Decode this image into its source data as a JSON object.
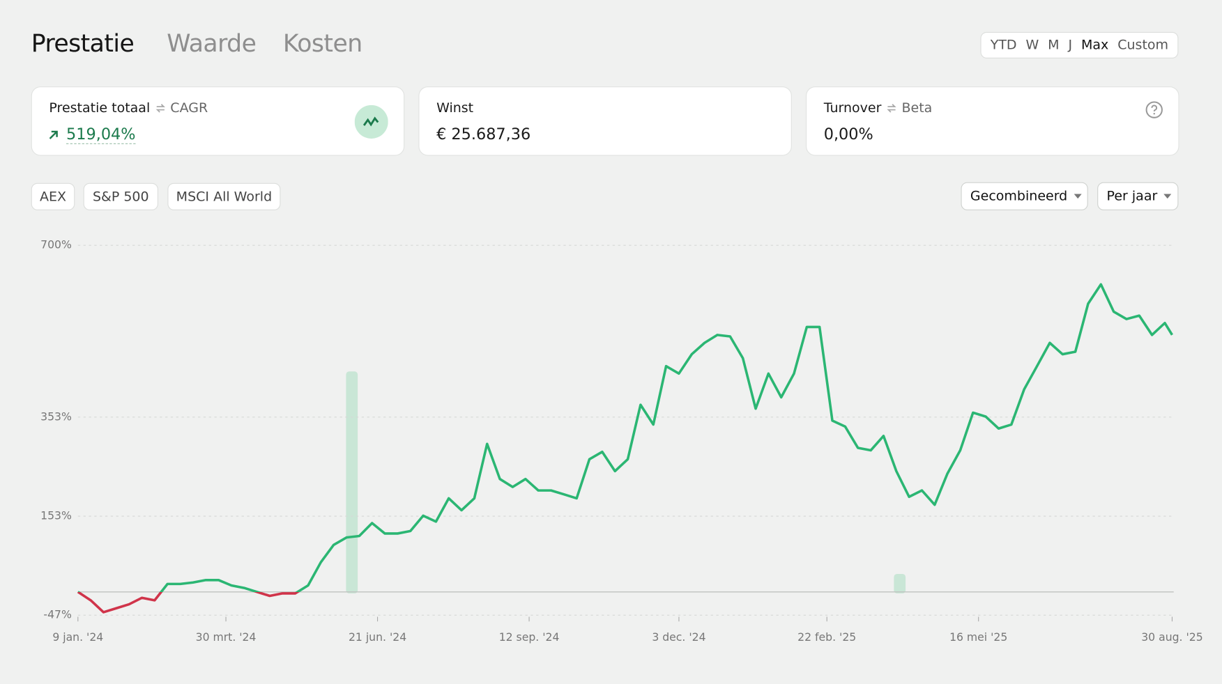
{
  "tabs": [
    {
      "label": "Prestatie",
      "active": true
    },
    {
      "label": "Waarde",
      "active": false
    },
    {
      "label": "Kosten",
      "active": false
    }
  ],
  "ranges": [
    {
      "label": "YTD",
      "active": false
    },
    {
      "label": "W",
      "active": false
    },
    {
      "label": "M",
      "active": false
    },
    {
      "label": "J",
      "active": false
    },
    {
      "label": "Max",
      "active": true
    },
    {
      "label": "Custom",
      "active": false
    }
  ],
  "cards": [
    {
      "label": "Prestatie totaal",
      "alt_label": "CAGR",
      "value": "519,04%"
    },
    {
      "label": "Winst",
      "value": "€ 25.687,36"
    },
    {
      "label": "Turnover",
      "alt_label": "Beta",
      "value": "0,00%"
    }
  ],
  "benchmarks": [
    "AEX",
    "S&P 500",
    "MSCI All World"
  ],
  "dropdowns": [
    "Gecombineerd",
    "Per jaar"
  ],
  "chart_data": {
    "type": "line",
    "color": "#2bb673",
    "negative_color": "#d0344a",
    "grid": true,
    "x": [
      "2024-01-09",
      "2024-01-16",
      "2024-01-23",
      "2024-01-30",
      "2024-02-06",
      "2024-02-13",
      "2024-02-20",
      "2024-02-27",
      "2024-03-05",
      "2024-03-12",
      "2024-03-19",
      "2024-03-26",
      "2024-04-02",
      "2024-04-09",
      "2024-04-16",
      "2024-04-23",
      "2024-04-30",
      "2024-05-07",
      "2024-05-14",
      "2024-05-21",
      "2024-05-28",
      "2024-06-04",
      "2024-06-11",
      "2024-06-18",
      "2024-06-25",
      "2024-07-02",
      "2024-07-09",
      "2024-07-16",
      "2024-07-23",
      "2024-07-30",
      "2024-08-06",
      "2024-08-13",
      "2024-08-20",
      "2024-08-27",
      "2024-09-03",
      "2024-09-10",
      "2024-09-17",
      "2024-09-24",
      "2024-10-01",
      "2024-10-08",
      "2024-10-15",
      "2024-10-22",
      "2024-10-29",
      "2024-11-05",
      "2024-11-12",
      "2024-11-19",
      "2024-11-26",
      "2024-12-03",
      "2024-12-10",
      "2024-12-17",
      "2024-12-24",
      "2024-12-31",
      "2025-01-07",
      "2025-01-14",
      "2025-01-21",
      "2025-01-28",
      "2025-02-04",
      "2025-02-11",
      "2025-02-18",
      "2025-02-25",
      "2025-03-04",
      "2025-03-11",
      "2025-03-18",
      "2025-03-25",
      "2025-04-01",
      "2025-04-08",
      "2025-04-15",
      "2025-04-22",
      "2025-04-29",
      "2025-05-06",
      "2025-05-13",
      "2025-05-20",
      "2025-05-27",
      "2025-06-03",
      "2025-06-10",
      "2025-06-17",
      "2025-06-24",
      "2025-07-01",
      "2025-07-08",
      "2025-07-15",
      "2025-07-22",
      "2025-07-29",
      "2025-08-05",
      "2025-08-12",
      "2025-08-19",
      "2025-08-26",
      "2025-08-30"
    ],
    "values": [
      0,
      -17,
      -41,
      -33,
      -25,
      -12,
      -17,
      16,
      16,
      19,
      24,
      24,
      13,
      8,
      0,
      -8,
      -3,
      -3,
      13,
      60,
      95,
      110,
      113,
      139,
      118,
      118,
      123,
      154,
      142,
      189,
      165,
      189,
      299,
      228,
      212,
      228,
      205,
      205,
      197,
      189,
      268,
      283,
      244,
      268,
      378,
      338,
      456,
      441,
      480,
      503,
      519,
      516,
      472,
      370,
      441,
      393,
      441,
      535,
      535,
      346,
      334,
      291,
      286,
      315,
      244,
      192,
      205,
      176,
      239,
      286,
      362,
      354,
      330,
      338,
      409,
      456,
      503,
      480,
      485,
      582,
      621,
      566,
      551,
      558,
      519,
      543,
      519
    ],
    "xlim": [
      "2024-01-09",
      "2025-08-30"
    ],
    "xticks": [
      {
        "value": "2024-01-09",
        "label": "9 jan. '24"
      },
      {
        "value": "2024-03-30",
        "label": "30 mrt. '24"
      },
      {
        "value": "2024-06-21",
        "label": "21 jun. '24"
      },
      {
        "value": "2024-09-12",
        "label": "12 sep. '24"
      },
      {
        "value": "2024-12-03",
        "label": "3 dec. '24"
      },
      {
        "value": "2025-02-22",
        "label": "22 feb. '25"
      },
      {
        "value": "2025-05-16",
        "label": "16 mei '25"
      },
      {
        "value": "2025-08-30",
        "label": "30 aug. '25"
      }
    ],
    "ylim": [
      -47,
      700
    ],
    "yticks": [
      {
        "value": -47,
        "label": "-47%"
      },
      {
        "value": 153,
        "label": "153%"
      },
      {
        "value": 353,
        "label": "353%"
      },
      {
        "value": 700,
        "label": "700%"
      }
    ]
  }
}
